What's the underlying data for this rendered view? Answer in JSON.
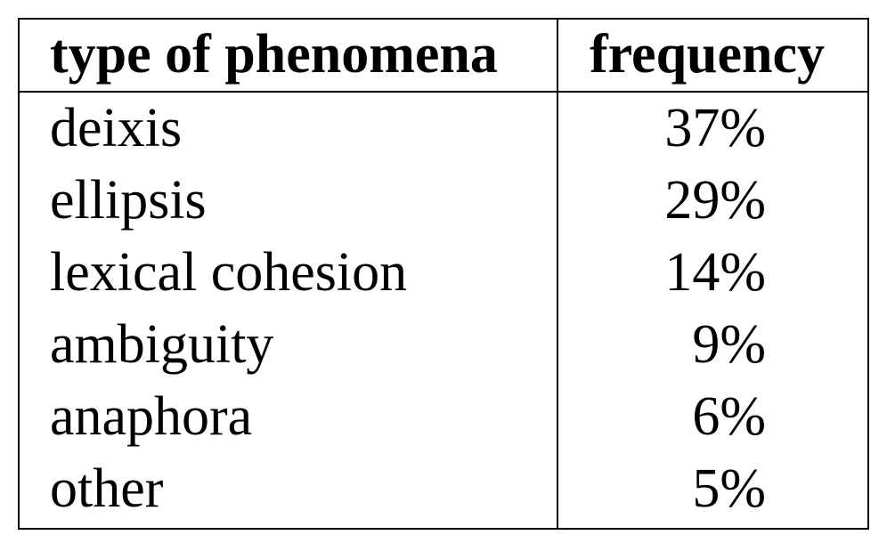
{
  "chart_data": {
    "type": "table",
    "columns": [
      "type of phenomena",
      "frequency"
    ],
    "rows": [
      {
        "type": "deixis",
        "frequency": "37%"
      },
      {
        "type": "ellipsis",
        "frequency": "29%"
      },
      {
        "type": "lexical cohesion",
        "frequency": "14%"
      },
      {
        "type": "ambiguity",
        "frequency": "9%"
      },
      {
        "type": "anaphora",
        "frequency": "6%"
      },
      {
        "type": "other",
        "frequency": "5%"
      }
    ]
  }
}
